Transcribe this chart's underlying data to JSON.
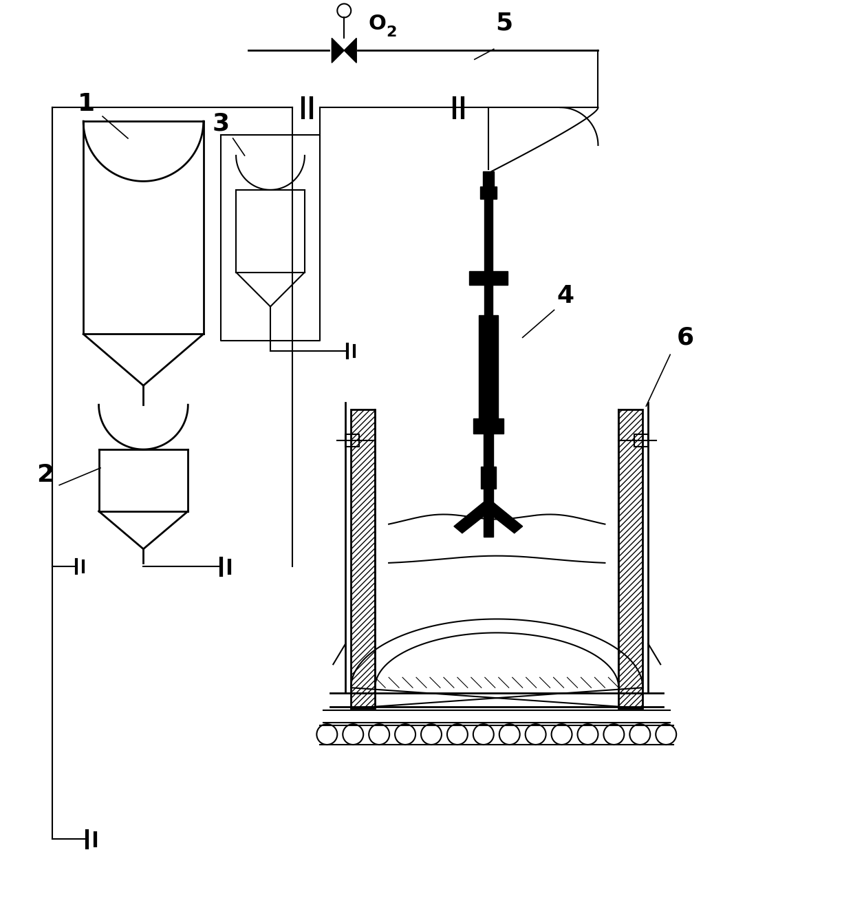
{
  "bg_color": "#ffffff",
  "line_color": "#000000",
  "lw": 1.5,
  "lw2": 2.0,
  "fig_w": 12.4,
  "fig_h": 13.15,
  "dpi": 100
}
